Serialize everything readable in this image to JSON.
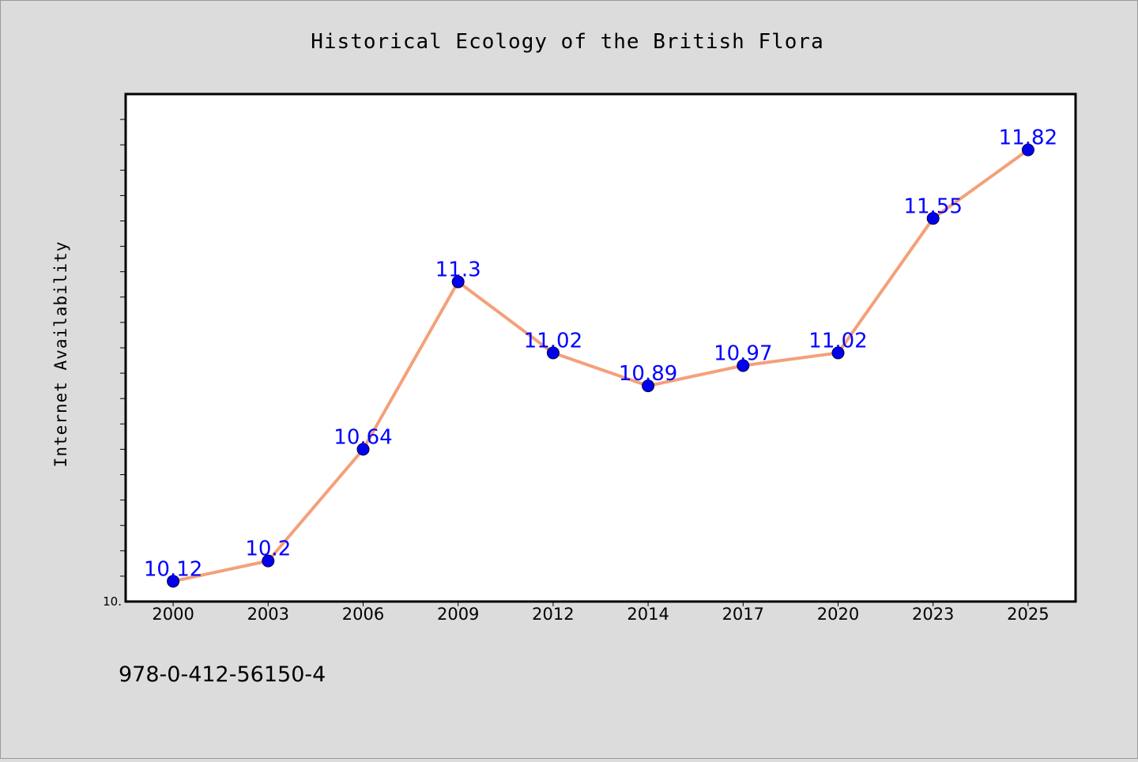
{
  "colors": {
    "background": "#dcdcdc",
    "plot_background": "#ffffff",
    "line": "#f4a07a",
    "marker": "#0000ee",
    "data_label": "#0000ff",
    "axis": "#000000"
  },
  "footer": {
    "isbn": "978-0-412-56150-4"
  },
  "chart_data": {
    "type": "line",
    "title": "Historical Ecology of the British Flora",
    "xlabel": "",
    "ylabel": "Internet Availability",
    "categories": [
      "2000",
      "2003",
      "2006",
      "2009",
      "2012",
      "2014",
      "2017",
      "2020",
      "2023",
      "2025"
    ],
    "series": [
      {
        "values": [
          10.12,
          10.2,
          10.64,
          11.3,
          11.02,
          10.89,
          10.97,
          11.02,
          11.55,
          11.82
        ],
        "labels": [
          "10.12",
          "10.2",
          "10.64",
          "11.3",
          "11.02",
          "10.89",
          "10.97",
          "11.02",
          "11.55",
          "11.82"
        ]
      }
    ],
    "y_tick_labels": [
      "10."
    ],
    "ylim": [
      10.04,
      12.04
    ],
    "y_minor_step": 0.1,
    "grid": false,
    "legend": "none"
  }
}
